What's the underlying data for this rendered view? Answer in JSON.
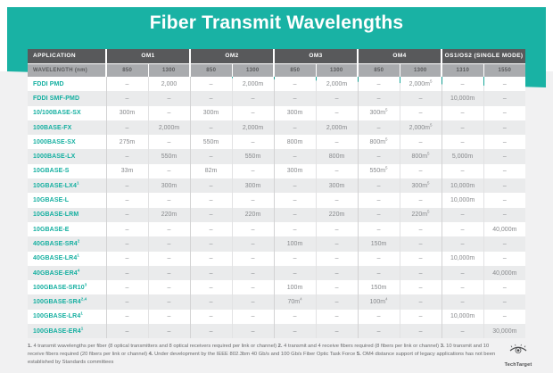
{
  "title": "Fiber Transmit Wavelengths",
  "colors": {
    "teal_accent": "#19B2A4",
    "header_dark": "#58595B",
    "header_mid": "#A9ABAE",
    "row_alt": "#EAEBEC",
    "page_bg": "#F1F1F2"
  },
  "chart_data": {
    "type": "table",
    "title": "Fiber Transmit Wavelengths",
    "column_groups": [
      {
        "label": "APPLICATION",
        "span": 1
      },
      {
        "label": "OM1",
        "span": 2
      },
      {
        "label": "OM2",
        "span": 2
      },
      {
        "label": "OM3",
        "span": 2
      },
      {
        "label": "OM4",
        "span": 2
      },
      {
        "label": "OS1/OS2 (SINGLE MODE)",
        "span": 2
      }
    ],
    "wavelength_header": {
      "label": "WAVELENGTH (nm)",
      "values": [
        "850",
        "1300",
        "850",
        "1300",
        "850",
        "1300",
        "850",
        "1300",
        "1310",
        "1550"
      ]
    },
    "rows": [
      {
        "application": "FDDI PMD",
        "values": [
          "–",
          "2,000",
          "–",
          "2,000m",
          "–",
          "2,000m",
          "–",
          "2,000m^5",
          "–",
          "–"
        ]
      },
      {
        "application": "FDDI SMF-PMD",
        "values": [
          "–",
          "–",
          "–",
          "–",
          "–",
          "–",
          "–",
          "–",
          "10,000m",
          "–"
        ]
      },
      {
        "application": "10/100BASE-SX",
        "values": [
          "300m",
          "–",
          "300m",
          "–",
          "300m",
          "–",
          "300m^5",
          "–",
          "–",
          "–"
        ]
      },
      {
        "application": "100BASE-FX",
        "values": [
          "–",
          "2,000m",
          "–",
          "2,000m",
          "–",
          "2,000m",
          "–",
          "2,000m^5",
          "–",
          "–"
        ]
      },
      {
        "application": "1000BASE-SX",
        "values": [
          "275m",
          "–",
          "550m",
          "–",
          "800m",
          "–",
          "800m^5",
          "–",
          "–",
          "–"
        ]
      },
      {
        "application": "1000BASE-LX",
        "values": [
          "–",
          "550m",
          "–",
          "550m",
          "–",
          "800m",
          "–",
          "800m^5",
          "5,000m",
          "–"
        ]
      },
      {
        "application": "10GBASE-S",
        "values": [
          "33m",
          "–",
          "82m",
          "–",
          "300m",
          "–",
          "550m^5",
          "–",
          "–",
          "–"
        ]
      },
      {
        "application": "10GBASE-LX4^1",
        "values": [
          "–",
          "300m",
          "–",
          "300m",
          "–",
          "300m",
          "–",
          "300m^5",
          "10,000m",
          "–"
        ]
      },
      {
        "application": "10GBASE-L",
        "values": [
          "–",
          "–",
          "–",
          "–",
          "–",
          "–",
          "–",
          "–",
          "10,000m",
          "–"
        ]
      },
      {
        "application": "10GBASE-LRM",
        "values": [
          "–",
          "220m",
          "–",
          "220m",
          "–",
          "220m",
          "–",
          "220m^5",
          "–",
          "–"
        ]
      },
      {
        "application": "10GBASE-E",
        "values": [
          "–",
          "–",
          "–",
          "–",
          "–",
          "–",
          "–",
          "–",
          "–",
          "40,000m"
        ]
      },
      {
        "application": "40GBASE-SR4^2",
        "values": [
          "–",
          "–",
          "–",
          "–",
          "100m",
          "–",
          "150m",
          "–",
          "–",
          "–"
        ]
      },
      {
        "application": "40GBASE-LR4^1",
        "values": [
          "–",
          "–",
          "–",
          "–",
          "–",
          "–",
          "–",
          "–",
          "10,000m",
          "–"
        ]
      },
      {
        "application": "40GBASE-ER4^4",
        "values": [
          "–",
          "–",
          "–",
          "–",
          "–",
          "–",
          "–",
          "–",
          "–",
          "40,000m"
        ]
      },
      {
        "application": "100GBASE-SR10^3",
        "values": [
          "–",
          "–",
          "–",
          "–",
          "100m",
          "–",
          "150m",
          "–",
          "–",
          "–"
        ]
      },
      {
        "application": "100GBASE-SR4^2,4",
        "values": [
          "–",
          "–",
          "–",
          "–",
          "70m^4",
          "–",
          "100m^4",
          "–",
          "–",
          "–"
        ]
      },
      {
        "application": "100GBASE-LR4^1",
        "values": [
          "–",
          "–",
          "–",
          "–",
          "–",
          "–",
          "–",
          "–",
          "10,000m",
          "–"
        ]
      },
      {
        "application": "100GBASE-ER4^1",
        "values": [
          "–",
          "–",
          "–",
          "–",
          "–",
          "–",
          "–",
          "–",
          "–",
          "30,000m"
        ]
      }
    ]
  },
  "footnotes": [
    {
      "num": "1.",
      "text": "4 transmit wavelengths per fiber (8 optical transmitters and 8 optical receivers required per link or channel)"
    },
    {
      "num": "2.",
      "text": "4 transmit and 4 receive fibers required (8 fibers per link or channel)"
    },
    {
      "num": "3.",
      "text": "10 transmit and 10 receive fibers required (20 fibers per link or channel)"
    },
    {
      "num": "4.",
      "text": "Under development by the IEEE 802.3bm 40 Gb/s and 100 Gb/s Fiber Optic Task Force"
    },
    {
      "num": "5.",
      "text": "OM4 distance support of legacy applications has not been established by Standards committees"
    }
  ],
  "branding": {
    "name": "TechTarget",
    "icon": "eye-icon"
  }
}
